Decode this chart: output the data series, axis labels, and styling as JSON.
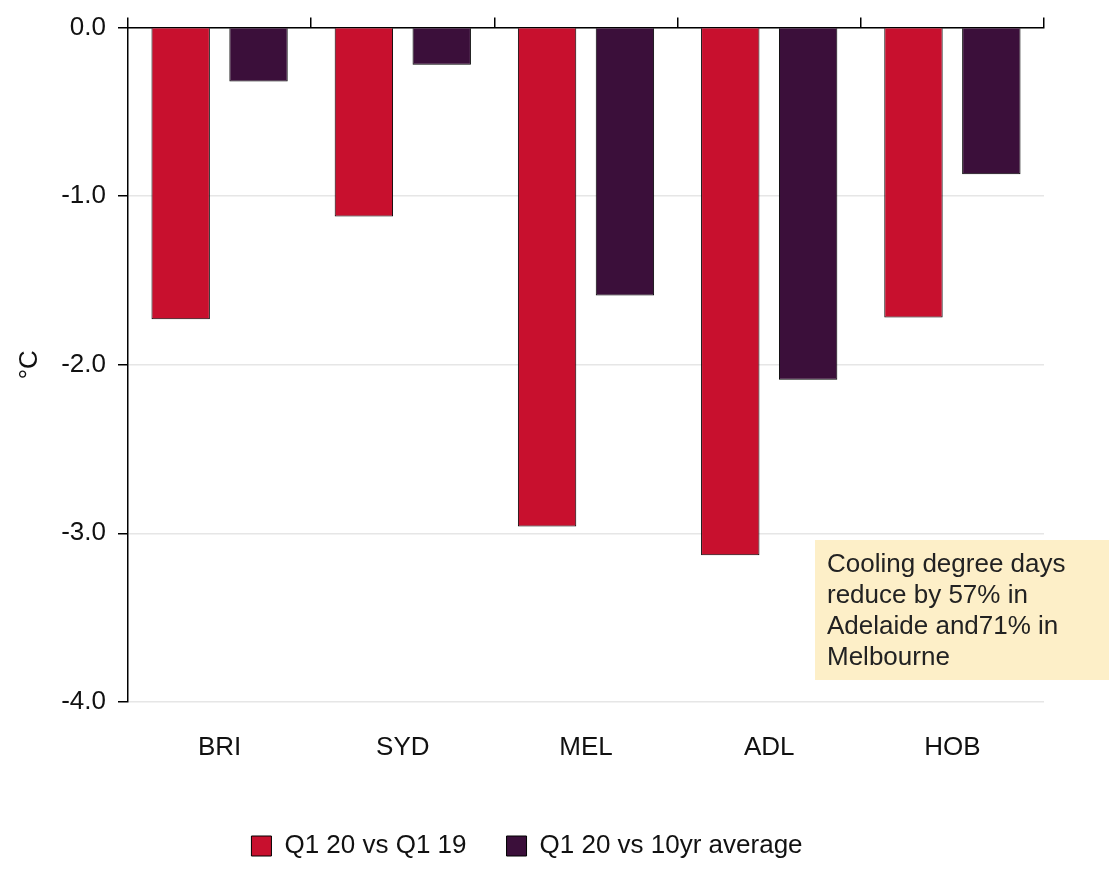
{
  "chart_data": {
    "type": "bar",
    "ylabel": "°C",
    "categories": [
      "BRI",
      "SYD",
      "MEL",
      "ADL",
      "HOB"
    ],
    "series": [
      {
        "name": "Q1 20 vs Q1 19",
        "color": "#c8102e",
        "values": [
          -1.73,
          -1.12,
          -2.96,
          -3.13,
          -1.72
        ]
      },
      {
        "name": "Q1 20 vs 10yr average",
        "color": "#3b0f3a",
        "values": [
          -0.32,
          -0.22,
          -1.59,
          -2.09,
          -0.87
        ]
      }
    ],
    "ylim": [
      -4,
      0
    ],
    "yticks": [
      {
        "value": -4,
        "label": "-4.0"
      },
      {
        "value": -3,
        "label": "-3.0"
      },
      {
        "value": -2,
        "label": "-2.0"
      },
      {
        "value": -1,
        "label": "-1.0"
      },
      {
        "value": 0,
        "label": "0.0"
      }
    ],
    "grid": "y",
    "legend": "bottom",
    "annotations": [
      "Cooling degree days reduce by 57% in Adelaide and71% in Melbourne"
    ]
  }
}
